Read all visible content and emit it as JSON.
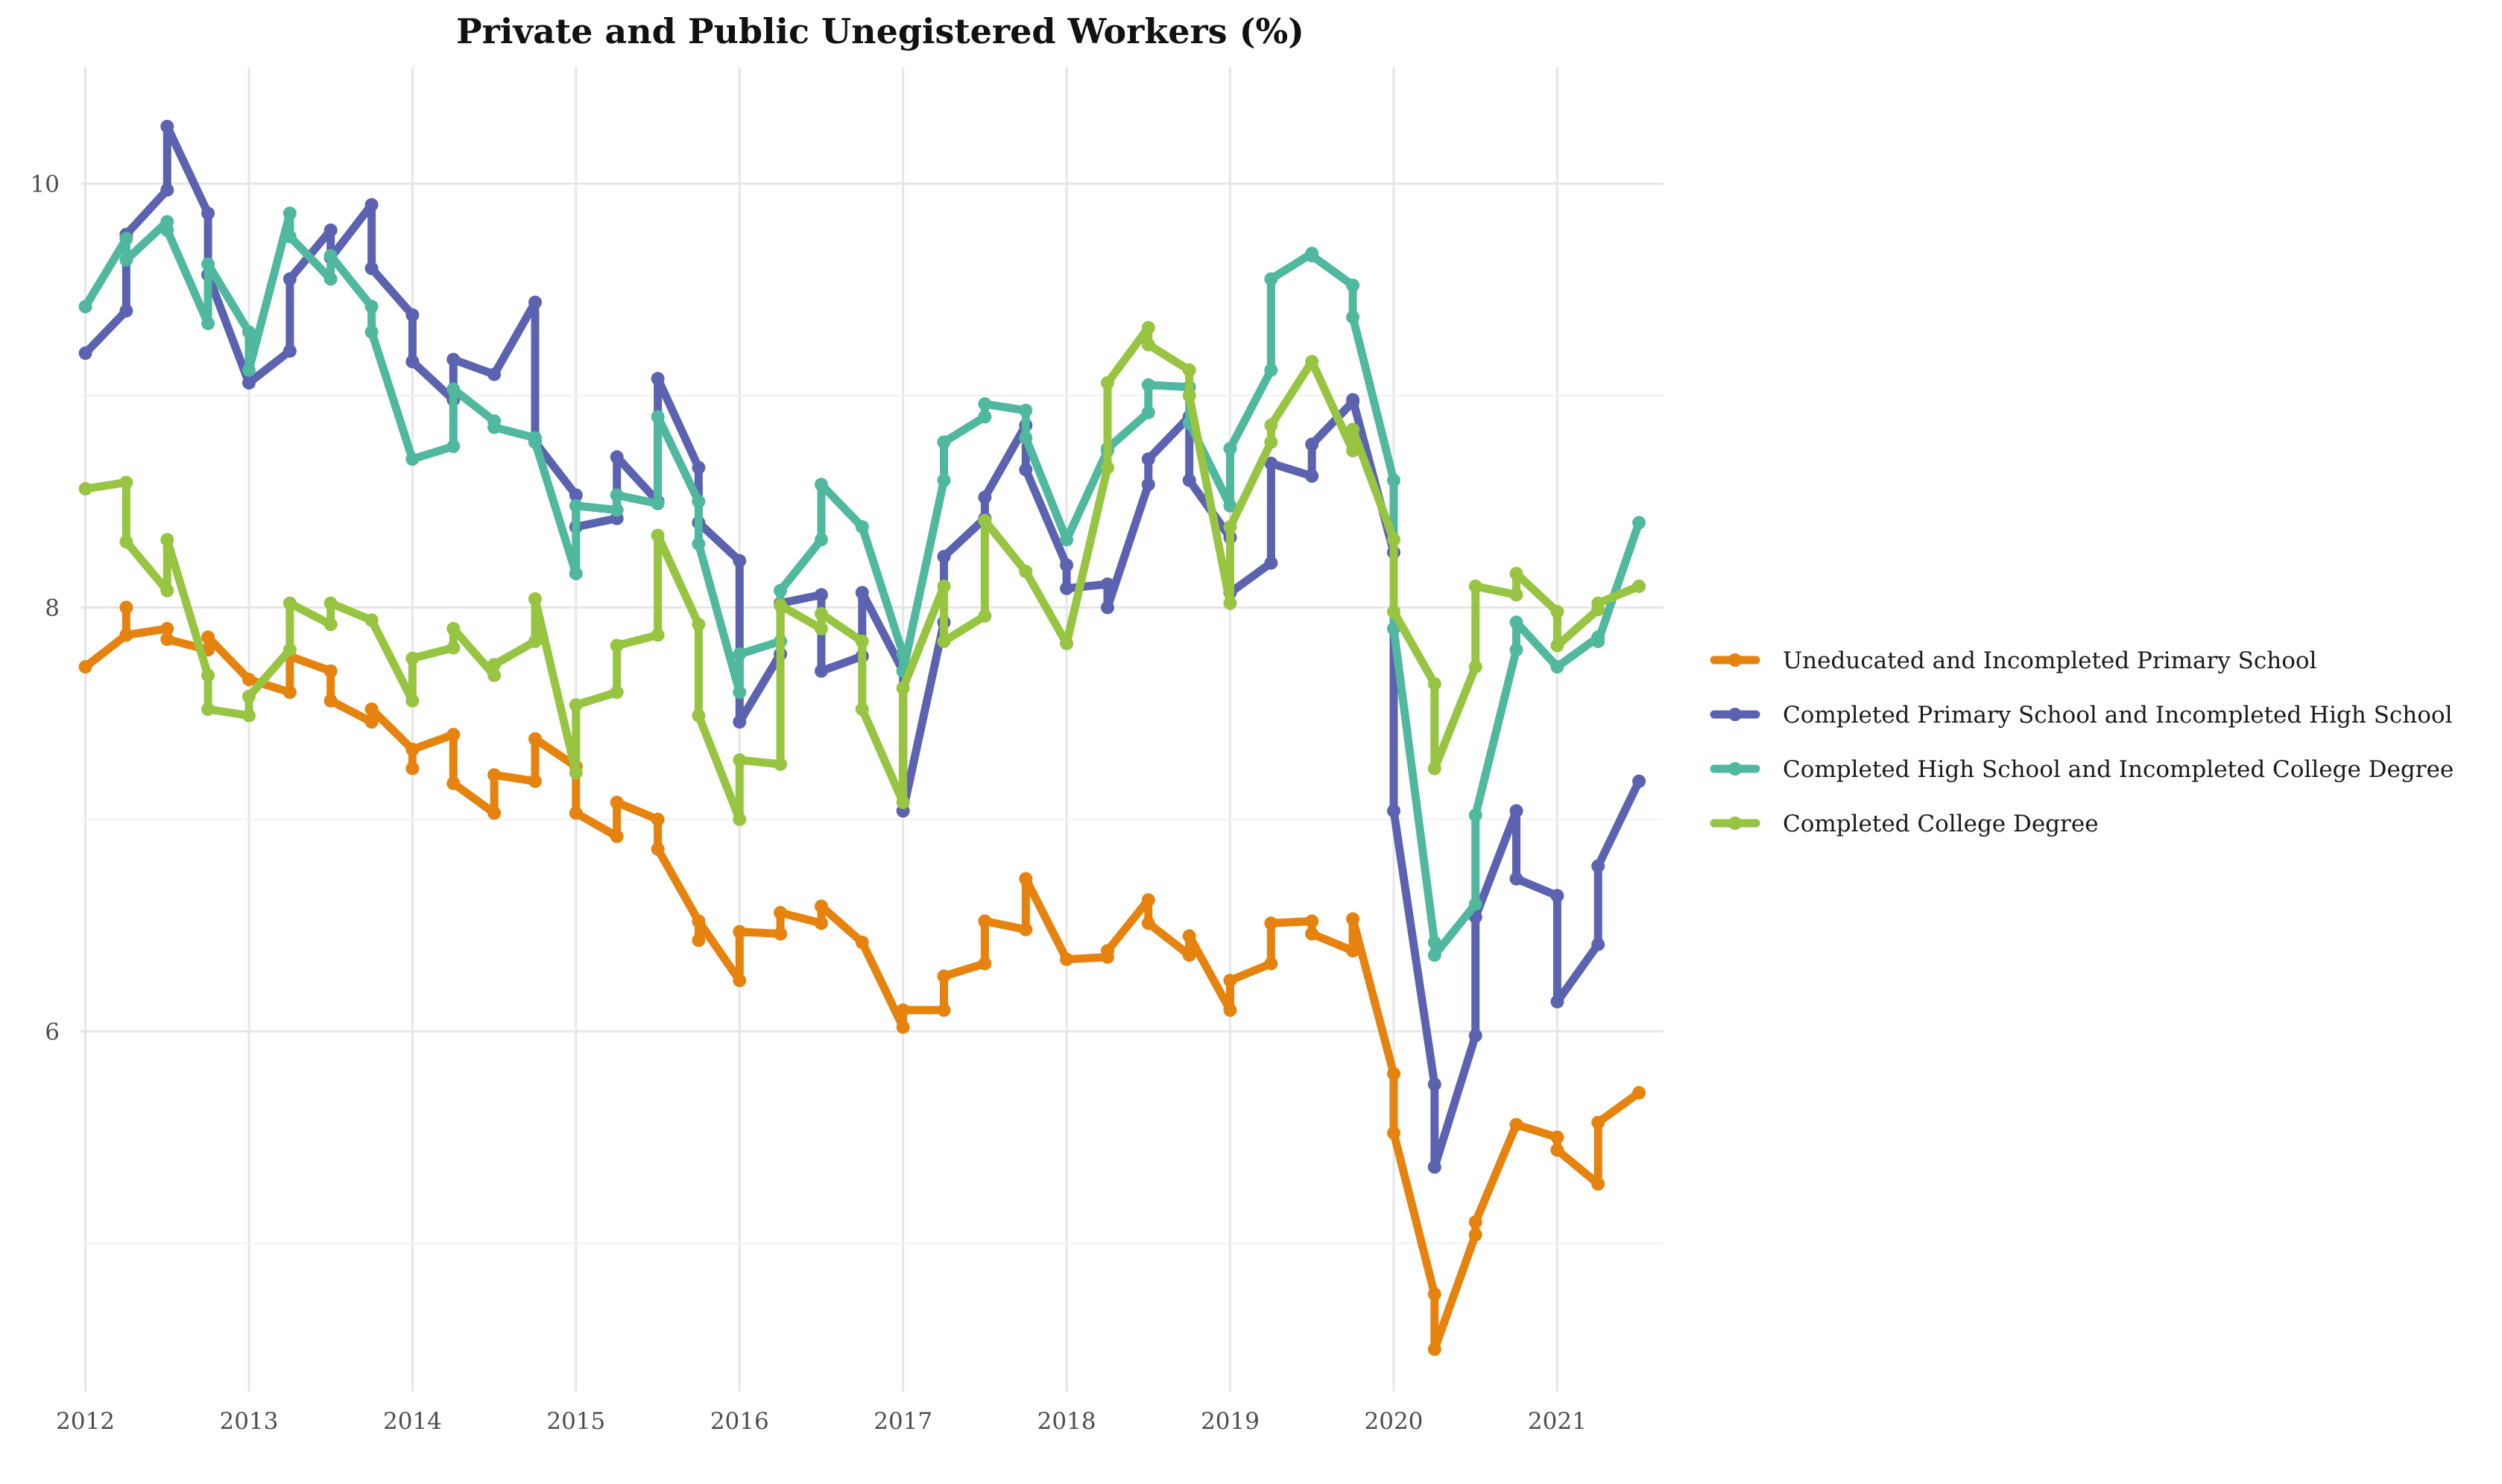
{
  "chart_data": {
    "type": "line",
    "title": "Private and Public Unegistered Workers (%)",
    "xlabel": "",
    "ylabel": "",
    "x_ticks": [
      "2012",
      "2013",
      "2014",
      "2015",
      "2016",
      "2017",
      "2018",
      "2019",
      "2020",
      "2021"
    ],
    "y_ticks": [
      "6",
      "8",
      "10"
    ],
    "xlim": [
      2011.97,
      2021.65
    ],
    "ylim": [
      4.3,
      10.55
    ],
    "grid": true,
    "legend_position": "right",
    "series": [
      {
        "name": "Uneducated and Incompleted Primary School",
        "color": "#E6820E",
        "points": [
          [
            2012.0,
            7.72
          ],
          [
            2012.25,
            7.87
          ],
          [
            2012.25,
            8.0
          ],
          [
            2012.25,
            7.87
          ],
          [
            2012.5,
            7.9
          ],
          [
            2012.5,
            7.85
          ],
          [
            2012.75,
            7.8
          ],
          [
            2012.75,
            7.86
          ],
          [
            2013.0,
            7.66
          ],
          [
            2013.25,
            7.6
          ],
          [
            2013.25,
            7.77
          ],
          [
            2013.5,
            7.7
          ],
          [
            2013.5,
            7.56
          ],
          [
            2013.75,
            7.46
          ],
          [
            2013.75,
            7.52
          ],
          [
            2014.0,
            7.33
          ],
          [
            2014.0,
            7.24
          ],
          [
            2014.0,
            7.33
          ],
          [
            2014.25,
            7.4
          ],
          [
            2014.25,
            7.17
          ],
          [
            2014.5,
            7.03
          ],
          [
            2014.5,
            7.21
          ],
          [
            2014.75,
            7.18
          ],
          [
            2014.75,
            7.38
          ],
          [
            2015.0,
            7.25
          ],
          [
            2015.0,
            7.03
          ],
          [
            2015.25,
            6.92
          ],
          [
            2015.25,
            7.08
          ],
          [
            2015.5,
            7.0
          ],
          [
            2015.5,
            6.86
          ],
          [
            2015.75,
            6.52
          ],
          [
            2015.75,
            6.43
          ],
          [
            2015.75,
            6.52
          ],
          [
            2016.0,
            6.24
          ],
          [
            2016.0,
            6.47
          ],
          [
            2016.25,
            6.46
          ],
          [
            2016.25,
            6.56
          ],
          [
            2016.5,
            6.51
          ],
          [
            2016.5,
            6.59
          ],
          [
            2016.75,
            6.42
          ],
          [
            2017.0,
            6.02
          ],
          [
            2017.0,
            6.1
          ],
          [
            2017.25,
            6.1
          ],
          [
            2017.25,
            6.26
          ],
          [
            2017.5,
            6.32
          ],
          [
            2017.5,
            6.52
          ],
          [
            2017.75,
            6.48
          ],
          [
            2017.75,
            6.72
          ],
          [
            2018.0,
            6.34
          ],
          [
            2018.25,
            6.35
          ],
          [
            2018.25,
            6.38
          ],
          [
            2018.5,
            6.62
          ],
          [
            2018.5,
            6.51
          ],
          [
            2018.75,
            6.36
          ],
          [
            2018.75,
            6.45
          ],
          [
            2019.0,
            6.1
          ],
          [
            2019.0,
            6.24
          ],
          [
            2019.25,
            6.32
          ],
          [
            2019.25,
            6.51
          ],
          [
            2019.5,
            6.52
          ],
          [
            2019.5,
            6.46
          ],
          [
            2019.75,
            6.38
          ],
          [
            2019.75,
            6.53
          ],
          [
            2020.0,
            5.8
          ],
          [
            2020.0,
            5.52
          ],
          [
            2020.25,
            4.76
          ],
          [
            2020.25,
            4.5
          ],
          [
            2020.5,
            5.04
          ],
          [
            2020.5,
            5.1
          ],
          [
            2020.75,
            5.56
          ],
          [
            2021.0,
            5.5
          ],
          [
            2021.0,
            5.44
          ],
          [
            2021.25,
            5.28
          ],
          [
            2021.25,
            5.57
          ],
          [
            2021.5,
            5.71
          ]
        ]
      },
      {
        "name": "Completed Primary School and Incompleted High School",
        "color": "#5B62B0",
        "points": [
          [
            2012.0,
            9.2
          ],
          [
            2012.25,
            9.4
          ],
          [
            2012.25,
            9.76
          ],
          [
            2012.5,
            9.97
          ],
          [
            2012.5,
            10.27
          ],
          [
            2012.75,
            9.86
          ],
          [
            2012.75,
            9.57
          ],
          [
            2013.0,
            9.06
          ],
          [
            2013.25,
            9.21
          ],
          [
            2013.25,
            9.55
          ],
          [
            2013.5,
            9.78
          ],
          [
            2013.5,
            9.65
          ],
          [
            2013.75,
            9.9
          ],
          [
            2013.75,
            9.6
          ],
          [
            2014.0,
            9.38
          ],
          [
            2014.0,
            9.16
          ],
          [
            2014.25,
            8.98
          ],
          [
            2014.25,
            9.17
          ],
          [
            2014.5,
            9.1
          ],
          [
            2014.75,
            9.44
          ],
          [
            2014.75,
            8.78
          ],
          [
            2015.0,
            8.53
          ],
          [
            2015.0,
            8.38
          ],
          [
            2015.25,
            8.42
          ],
          [
            2015.25,
            8.71
          ],
          [
            2015.5,
            8.5
          ],
          [
            2015.5,
            9.08
          ],
          [
            2015.75,
            8.66
          ],
          [
            2015.75,
            8.4
          ],
          [
            2016.0,
            8.22
          ],
          [
            2016.0,
            7.46
          ],
          [
            2016.25,
            7.78
          ],
          [
            2016.25,
            8.02
          ],
          [
            2016.5,
            8.06
          ],
          [
            2016.5,
            7.7
          ],
          [
            2016.75,
            7.77
          ],
          [
            2016.75,
            8.07
          ],
          [
            2017.0,
            7.7
          ],
          [
            2017.0,
            7.04
          ],
          [
            2017.25,
            7.93
          ],
          [
            2017.25,
            8.24
          ],
          [
            2017.5,
            8.42
          ],
          [
            2017.5,
            8.52
          ],
          [
            2017.75,
            8.86
          ],
          [
            2017.75,
            8.65
          ],
          [
            2018.0,
            8.2
          ],
          [
            2018.0,
            8.09
          ],
          [
            2018.25,
            8.11
          ],
          [
            2018.25,
            8.0
          ],
          [
            2018.5,
            8.58
          ],
          [
            2018.5,
            8.7
          ],
          [
            2018.75,
            8.9
          ],
          [
            2018.75,
            8.6
          ],
          [
            2019.0,
            8.33
          ],
          [
            2019.0,
            8.07
          ],
          [
            2019.25,
            8.21
          ],
          [
            2019.25,
            8.68
          ],
          [
            2019.5,
            8.62
          ],
          [
            2019.5,
            8.77
          ],
          [
            2019.75,
            8.97
          ],
          [
            2019.75,
            8.98
          ],
          [
            2020.0,
            8.26
          ],
          [
            2020.0,
            7.04
          ],
          [
            2020.25,
            5.75
          ],
          [
            2020.25,
            5.36
          ],
          [
            2020.5,
            5.98
          ],
          [
            2020.5,
            6.54
          ],
          [
            2020.75,
            7.04
          ],
          [
            2020.75,
            6.72
          ],
          [
            2021.0,
            6.64
          ],
          [
            2021.0,
            6.14
          ],
          [
            2021.25,
            6.41
          ],
          [
            2021.25,
            6.78
          ],
          [
            2021.5,
            7.18
          ]
        ]
      },
      {
        "name": "Completed High School and Incompleted College Degree",
        "color": "#4FB89E",
        "points": [
          [
            2012.0,
            9.42
          ],
          [
            2012.25,
            9.74
          ],
          [
            2012.25,
            9.64
          ],
          [
            2012.5,
            9.82
          ],
          [
            2012.5,
            9.78
          ],
          [
            2012.75,
            9.34
          ],
          [
            2012.75,
            9.62
          ],
          [
            2013.0,
            9.3
          ],
          [
            2013.0,
            9.12
          ],
          [
            2013.25,
            9.86
          ],
          [
            2013.25,
            9.75
          ],
          [
            2013.5,
            9.55
          ],
          [
            2013.5,
            9.66
          ],
          [
            2013.75,
            9.42
          ],
          [
            2013.75,
            9.3
          ],
          [
            2014.0,
            8.7
          ],
          [
            2014.25,
            8.76
          ],
          [
            2014.25,
            9.03
          ],
          [
            2014.5,
            8.88
          ],
          [
            2014.5,
            8.85
          ],
          [
            2014.75,
            8.8
          ],
          [
            2014.75,
            8.78
          ],
          [
            2015.0,
            8.16
          ],
          [
            2015.0,
            8.48
          ],
          [
            2015.25,
            8.46
          ],
          [
            2015.25,
            8.53
          ],
          [
            2015.5,
            8.49
          ],
          [
            2015.5,
            8.9
          ],
          [
            2015.75,
            8.5
          ],
          [
            2015.75,
            8.3
          ],
          [
            2016.0,
            7.6
          ],
          [
            2016.0,
            7.78
          ],
          [
            2016.25,
            7.84
          ],
          [
            2016.25,
            8.08
          ],
          [
            2016.5,
            8.32
          ],
          [
            2016.5,
            8.58
          ],
          [
            2016.75,
            8.38
          ],
          [
            2017.0,
            7.78
          ],
          [
            2017.0,
            7.7
          ],
          [
            2017.25,
            8.6
          ],
          [
            2017.25,
            8.78
          ],
          [
            2017.5,
            8.9
          ],
          [
            2017.5,
            8.96
          ],
          [
            2017.75,
            8.93
          ],
          [
            2017.75,
            8.8
          ],
          [
            2018.0,
            8.32
          ],
          [
            2018.25,
            8.74
          ],
          [
            2018.25,
            8.75
          ],
          [
            2018.5,
            8.92
          ],
          [
            2018.5,
            9.05
          ],
          [
            2018.75,
            9.04
          ],
          [
            2018.75,
            8.87
          ],
          [
            2019.0,
            8.48
          ],
          [
            2019.0,
            8.75
          ],
          [
            2019.25,
            9.12
          ],
          [
            2019.25,
            9.55
          ],
          [
            2019.5,
            9.67
          ],
          [
            2019.5,
            9.66
          ],
          [
            2019.75,
            9.52
          ],
          [
            2019.75,
            9.37
          ],
          [
            2020.0,
            8.6
          ],
          [
            2020.0,
            7.9
          ],
          [
            2020.25,
            6.42
          ],
          [
            2020.25,
            6.36
          ],
          [
            2020.5,
            6.6
          ],
          [
            2020.5,
            7.02
          ],
          [
            2020.75,
            7.8
          ],
          [
            2020.75,
            7.93
          ],
          [
            2021.0,
            7.72
          ],
          [
            2021.25,
            7.86
          ],
          [
            2021.25,
            7.84
          ],
          [
            2021.5,
            8.4
          ]
        ]
      },
      {
        "name": "Completed College Degree",
        "color": "#97C441",
        "points": [
          [
            2012.0,
            8.56
          ],
          [
            2012.25,
            8.59
          ],
          [
            2012.25,
            8.31
          ],
          [
            2012.5,
            8.08
          ],
          [
            2012.5,
            8.32
          ],
          [
            2012.75,
            7.68
          ],
          [
            2012.75,
            7.52
          ],
          [
            2013.0,
            7.49
          ],
          [
            2013.0,
            7.58
          ],
          [
            2013.25,
            7.8
          ],
          [
            2013.25,
            8.02
          ],
          [
            2013.5,
            7.92
          ],
          [
            2013.5,
            8.02
          ],
          [
            2013.75,
            7.94
          ],
          [
            2014.0,
            7.56
          ],
          [
            2014.0,
            7.76
          ],
          [
            2014.25,
            7.81
          ],
          [
            2014.25,
            7.9
          ],
          [
            2014.5,
            7.68
          ],
          [
            2014.5,
            7.73
          ],
          [
            2014.75,
            7.84
          ],
          [
            2014.75,
            8.04
          ],
          [
            2015.0,
            7.22
          ],
          [
            2015.0,
            7.54
          ],
          [
            2015.25,
            7.6
          ],
          [
            2015.25,
            7.82
          ],
          [
            2015.5,
            7.87
          ],
          [
            2015.5,
            8.34
          ],
          [
            2015.75,
            7.92
          ],
          [
            2015.75,
            7.49
          ],
          [
            2016.0,
            7.0
          ],
          [
            2016.0,
            7.28
          ],
          [
            2016.25,
            7.26
          ],
          [
            2016.25,
            8.01
          ],
          [
            2016.5,
            7.9
          ],
          [
            2016.5,
            7.97
          ],
          [
            2016.75,
            7.84
          ],
          [
            2016.75,
            7.52
          ],
          [
            2017.0,
            7.08
          ],
          [
            2017.0,
            7.62
          ],
          [
            2017.25,
            8.1
          ],
          [
            2017.25,
            7.84
          ],
          [
            2017.5,
            7.96
          ],
          [
            2017.5,
            8.41
          ],
          [
            2017.75,
            8.17
          ],
          [
            2018.0,
            7.83
          ],
          [
            2018.25,
            8.66
          ],
          [
            2018.25,
            9.06
          ],
          [
            2018.5,
            9.32
          ],
          [
            2018.5,
            9.24
          ],
          [
            2018.75,
            9.12
          ],
          [
            2018.75,
            9.0
          ],
          [
            2019.0,
            8.02
          ],
          [
            2019.0,
            8.38
          ],
          [
            2019.25,
            8.78
          ],
          [
            2019.25,
            8.86
          ],
          [
            2019.5,
            9.16
          ],
          [
            2019.75,
            8.74
          ],
          [
            2019.75,
            8.84
          ],
          [
            2020.0,
            8.32
          ],
          [
            2020.0,
            7.98
          ],
          [
            2020.25,
            7.64
          ],
          [
            2020.25,
            7.24
          ],
          [
            2020.5,
            7.72
          ],
          [
            2020.5,
            8.1
          ],
          [
            2020.75,
            8.06
          ],
          [
            2020.75,
            8.16
          ],
          [
            2021.0,
            7.98
          ],
          [
            2021.0,
            7.82
          ],
          [
            2021.25,
            7.99
          ],
          [
            2021.25,
            8.02
          ],
          [
            2021.5,
            8.1
          ]
        ]
      }
    ]
  }
}
